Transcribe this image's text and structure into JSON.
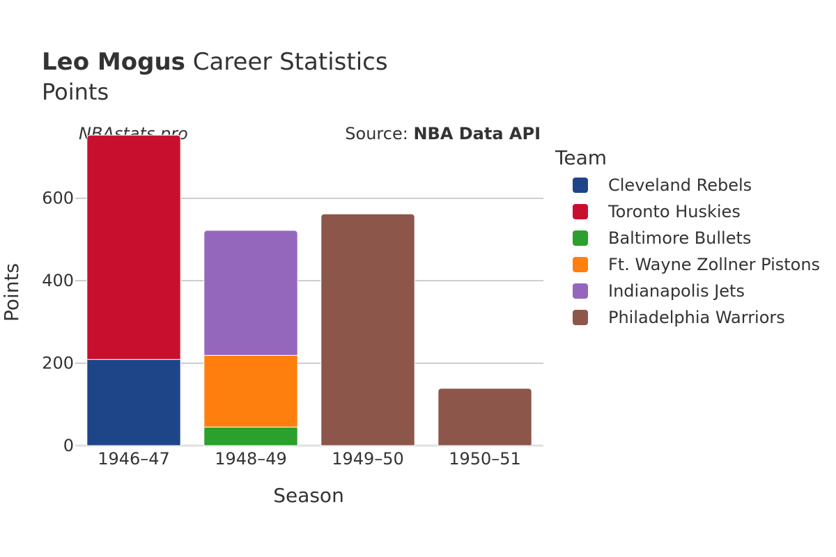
{
  "header": {
    "player_name": "Leo Mogus",
    "title_suffix": "Career Statistics",
    "subtitle": "Points"
  },
  "watermark": "NBAstats.pro",
  "source": {
    "prefix": "Source: ",
    "name": "NBA Data API"
  },
  "legend": {
    "title": "Team"
  },
  "chart_data": {
    "type": "bar",
    "stacked": true,
    "categories": [
      "1946–47",
      "1948–49",
      "1949–50",
      "1950–51"
    ],
    "series": [
      {
        "name": "Cleveland Rebels",
        "color": "#1f4589",
        "values": [
          209,
          0,
          0,
          0
        ]
      },
      {
        "name": "Toronto Huskies",
        "color": "#c8102e",
        "values": [
          544,
          0,
          0,
          0
        ]
      },
      {
        "name": "Baltimore Bullets",
        "color": "#2ca02c",
        "values": [
          0,
          45,
          0,
          0
        ]
      },
      {
        "name": "Ft. Wayne Zollner Pistons",
        "color": "#ff7f0e",
        "values": [
          0,
          174,
          0,
          0
        ]
      },
      {
        "name": "Indianapolis Jets",
        "color": "#9467bd",
        "values": [
          0,
          303,
          0,
          0
        ]
      },
      {
        "name": "Philadelphia Warriors",
        "color": "#8c564b",
        "values": [
          0,
          0,
          562,
          139
        ]
      }
    ],
    "xlabel": "Season",
    "ylabel": "Points",
    "ylim": [
      0,
      760
    ],
    "yticks": [
      0,
      200,
      400,
      600
    ],
    "grid": true,
    "legend_position": "right"
  }
}
